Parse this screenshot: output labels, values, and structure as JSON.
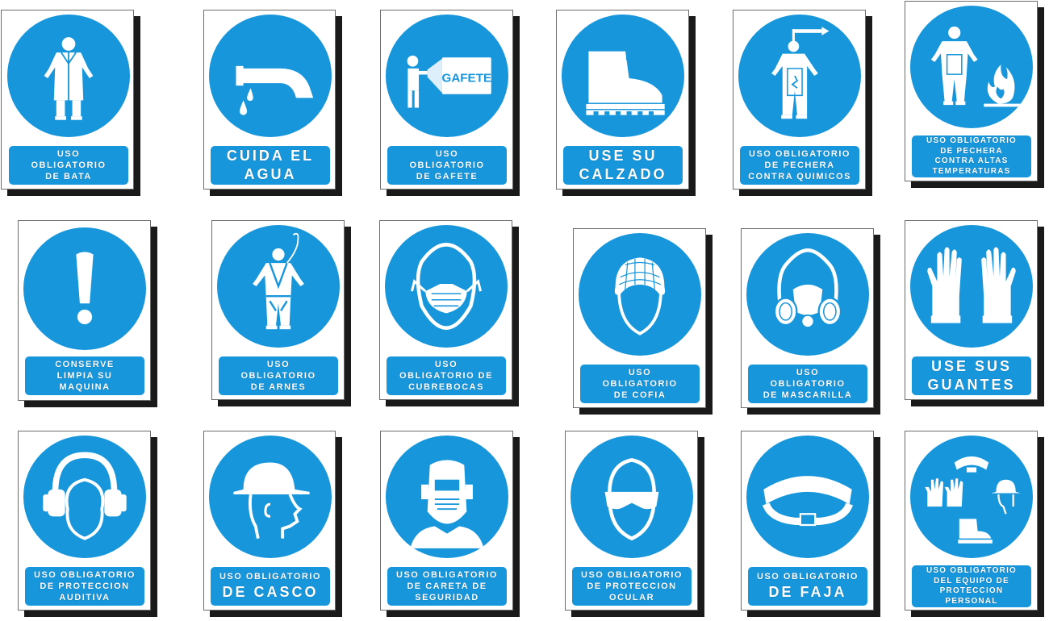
{
  "colors": {
    "sign_blue": "#1796dc",
    "pictogram": "#ffffff",
    "shadow": "#1a1a1a"
  },
  "signs": [
    {
      "icon": "lab-coat-icon",
      "lines": [
        "USO",
        "OBLIGATORIO",
        "DE BATA"
      ]
    },
    {
      "icon": "faucet-icon",
      "lines": [
        "CUIDA EL",
        "AGUA"
      ]
    },
    {
      "icon": "badge-icon",
      "badge_text": "GAFETE",
      "lines": [
        "USO",
        "OBLIGATORIO",
        "DE GAFETE"
      ]
    },
    {
      "icon": "boot-icon",
      "lines": [
        "USE SU",
        "CALZADO"
      ]
    },
    {
      "icon": "chemical-apron-icon",
      "lines": [
        "USO OBLIGATORIO",
        "DE PECHERA",
        "CONTRA QUIMICOS"
      ]
    },
    {
      "icon": "heat-apron-icon",
      "lines": [
        "USO OBLIGATORIO",
        "DE PECHERA",
        "CONTRA ALTAS",
        "TEMPERATURAS"
      ]
    },
    {
      "icon": "exclamation-icon",
      "lines": [
        "CONSERVE",
        "LIMPIA SU",
        "MAQUINA"
      ]
    },
    {
      "icon": "harness-icon",
      "lines": [
        "USO",
        "OBLIGATORIO",
        "DE ARNES"
      ]
    },
    {
      "icon": "face-mask-icon",
      "lines": [
        "USO",
        "OBLIGATORIO DE",
        "CUBREBOCAS"
      ]
    },
    {
      "icon": "hairnet-icon",
      "lines": [
        "USO",
        "OBLIGATORIO",
        "DE COFIA"
      ]
    },
    {
      "icon": "respirator-icon",
      "lines": [
        "USO",
        "OBLIGATORIO",
        "DE MASCARILLA"
      ]
    },
    {
      "icon": "gloves-icon",
      "lines": [
        "USE SUS",
        "GUANTES"
      ]
    },
    {
      "icon": "ear-muffs-icon",
      "lines": [
        "USO OBLIGATORIO",
        "DE PROTECCION",
        "AUDITIVA"
      ]
    },
    {
      "icon": "hard-hat-icon",
      "lines": [
        "USO OBLIGATORIO",
        "DE CASCO"
      ]
    },
    {
      "icon": "welding-helmet-icon",
      "lines": [
        "USO OBLIGATORIO",
        "DE CARETA DE",
        "SEGURIDAD"
      ]
    },
    {
      "icon": "safety-goggles-icon",
      "lines": [
        "USO OBLIGATORIO",
        "DE PROTECCION",
        "OCULAR"
      ]
    },
    {
      "icon": "back-belt-icon",
      "lines": [
        "USO OBLIGATORIO",
        "DE FAJA"
      ]
    },
    {
      "icon": "ppe-equipment-icon",
      "lines": [
        "USO OBLIGATORIO",
        "DEL EQUIPO DE",
        "PROTECCION",
        "PERSONAL"
      ]
    }
  ]
}
